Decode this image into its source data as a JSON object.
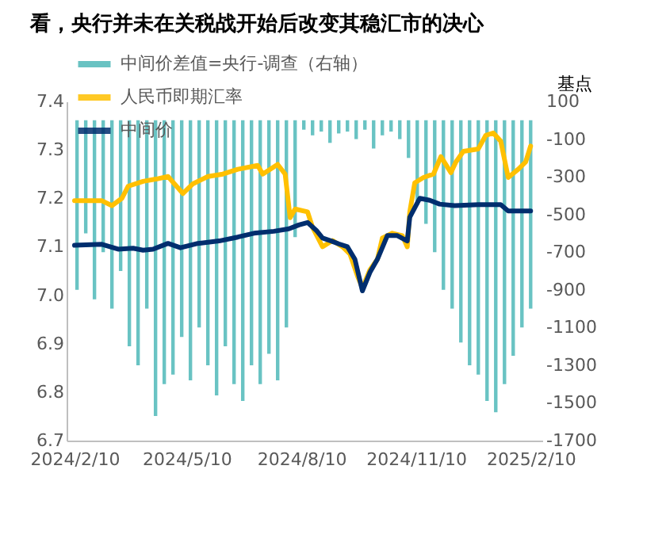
{
  "chart_data": {
    "type": "line",
    "title": "看，央行并未在关税战开始后改变其稳汇市的决心",
    "y2label": "基点",
    "legend": "top left",
    "grid": false,
    "xlim": [
      "2024-02-10",
      "2025-02-13"
    ],
    "xticks": [
      {
        "value": "2024-02-10",
        "label": "2024/2/10"
      },
      {
        "value": "2024-05-10",
        "label": "2024/5/10"
      },
      {
        "value": "2024-08-10",
        "label": "2024/8/10"
      },
      {
        "value": "2024-11-10",
        "label": "2024/11/10"
      },
      {
        "value": "2025-02-10",
        "label": "2025/2/10"
      }
    ],
    "ylim": [
      6.7,
      7.4
    ],
    "yticks": [
      {
        "value": 6.7,
        "label": "6.7"
      },
      {
        "value": 6.8,
        "label": "6.8"
      },
      {
        "value": 6.9,
        "label": "6.9"
      },
      {
        "value": 7,
        "label": "7.0"
      },
      {
        "value": 7.1,
        "label": "7.1"
      },
      {
        "value": 7.2,
        "label": "7.2"
      },
      {
        "value": 7.3,
        "label": "7.3"
      },
      {
        "value": 7.4,
        "label": "7.4"
      }
    ],
    "y2lim": [
      -1700,
      100
    ],
    "y2ticks": [
      100,
      -100,
      -300,
      -500,
      -700,
      -900,
      -1100,
      -1300,
      -1500,
      -1700
    ],
    "series": [
      {
        "name": "中间价差值=央行-调查（右轴）",
        "type": "bar",
        "axis": "y2",
        "color": "#4fb8b8",
        "x": [
          "2024-02-12",
          "2024-02-19",
          "2024-02-26",
          "2024-03-04",
          "2024-03-11",
          "2024-03-18",
          "2024-03-25",
          "2024-04-01",
          "2024-04-08",
          "2024-04-15",
          "2024-04-22",
          "2024-04-29",
          "2024-05-06",
          "2024-05-13",
          "2024-05-20",
          "2024-05-27",
          "2024-06-03",
          "2024-06-10",
          "2024-06-17",
          "2024-06-24",
          "2024-07-01",
          "2024-07-08",
          "2024-07-15",
          "2024-07-22",
          "2024-07-29",
          "2024-08-05",
          "2024-08-12",
          "2024-08-19",
          "2024-08-26",
          "2024-09-02",
          "2024-09-09",
          "2024-09-16",
          "2024-09-23",
          "2024-09-30",
          "2024-10-07",
          "2024-10-14",
          "2024-10-21",
          "2024-10-28",
          "2024-11-04",
          "2024-11-11",
          "2024-11-18",
          "2024-11-25",
          "2024-12-02",
          "2024-12-09",
          "2024-12-16",
          "2024-12-23",
          "2024-12-30",
          "2025-01-06",
          "2025-01-13",
          "2025-01-20",
          "2025-01-27",
          "2025-02-03",
          "2025-02-10"
        ],
        "values": [
          -900,
          -600,
          -950,
          -700,
          -1000,
          -800,
          -1200,
          -1300,
          -1000,
          -1570,
          -1400,
          -1350,
          -1150,
          -1380,
          -1100,
          -1300,
          -1460,
          -1200,
          -1400,
          -1490,
          -1300,
          -1400,
          -1240,
          -1380,
          -1100,
          -620,
          -50,
          -80,
          -60,
          -120,
          -70,
          -60,
          -100,
          -50,
          -150,
          -80,
          -60,
          -100,
          -200,
          -450,
          -550,
          -700,
          -900,
          -1000,
          -1180,
          -1300,
          -1350,
          -1490,
          -1550,
          -1400,
          -1250,
          -1100,
          -1000
        ]
      },
      {
        "name": "人民币即期汇率",
        "color": "#ffc000",
        "x": [
          "2024-02-10",
          "2024-03-03",
          "2024-03-11",
          "2024-03-19",
          "2024-03-24",
          "2024-04-05",
          "2024-04-16",
          "2024-04-25",
          "2024-05-07",
          "2024-05-15",
          "2024-05-27",
          "2024-06-08",
          "2024-06-20",
          "2024-07-06",
          "2024-07-10",
          "2024-07-22",
          "2024-07-28",
          "2024-08-01",
          "2024-08-05",
          "2024-08-15",
          "2024-08-19",
          "2024-08-27",
          "2024-09-04",
          "2024-09-12",
          "2024-09-18",
          "2024-09-24",
          "2024-09-28",
          "2024-10-04",
          "2024-10-10",
          "2024-10-14",
          "2024-10-22",
          "2024-10-30",
          "2024-11-03",
          "2024-11-05",
          "2024-11-09",
          "2024-11-16",
          "2024-11-24",
          "2024-11-30",
          "2024-12-08",
          "2024-12-12",
          "2024-12-18",
          "2024-12-30",
          "2025-01-05",
          "2025-01-11",
          "2025-01-17",
          "2025-01-23",
          "2025-01-31",
          "2025-02-06",
          "2025-02-10"
        ],
        "values": [
          7.195,
          7.195,
          7.185,
          7.2,
          7.225,
          7.235,
          7.24,
          7.245,
          7.21,
          7.23,
          7.245,
          7.25,
          7.26,
          7.268,
          7.25,
          7.27,
          7.25,
          7.16,
          7.178,
          7.172,
          7.14,
          7.1,
          7.113,
          7.1,
          7.085,
          7.04,
          7.015,
          7.052,
          7.074,
          7.118,
          7.128,
          7.123,
          7.1,
          7.172,
          7.232,
          7.243,
          7.25,
          7.286,
          7.253,
          7.275,
          7.297,
          7.302,
          7.33,
          7.335,
          7.318,
          7.243,
          7.26,
          7.275,
          7.308
        ]
      },
      {
        "name": "中间价",
        "color": "#002e6e",
        "x": [
          "2024-02-10",
          "2024-03-03",
          "2024-03-16",
          "2024-03-28",
          "2024-04-05",
          "2024-04-13",
          "2024-04-25",
          "2024-05-05",
          "2024-05-19",
          "2024-06-05",
          "2024-06-20",
          "2024-07-03",
          "2024-07-19",
          "2024-07-31",
          "2024-08-08",
          "2024-08-15",
          "2024-08-22",
          "2024-08-27",
          "2024-09-03",
          "2024-09-09",
          "2024-09-16",
          "2024-09-22",
          "2024-09-28",
          "2024-10-04",
          "2024-10-10",
          "2024-10-18",
          "2024-10-26",
          "2024-11-03",
          "2024-11-05",
          "2024-11-13",
          "2024-11-21",
          "2024-11-29",
          "2024-12-11",
          "2024-12-30",
          "2025-01-17",
          "2025-01-23",
          "2025-02-10"
        ],
        "values": [
          7.103,
          7.105,
          7.095,
          7.097,
          7.093,
          7.095,
          7.107,
          7.098,
          7.107,
          7.112,
          7.12,
          7.128,
          7.132,
          7.137,
          7.145,
          7.15,
          7.134,
          7.118,
          7.112,
          7.106,
          7.1,
          7.074,
          7.009,
          7.047,
          7.074,
          7.123,
          7.123,
          7.112,
          7.161,
          7.2,
          7.196,
          7.188,
          7.185,
          7.187,
          7.187,
          7.174,
          7.174
        ]
      }
    ]
  }
}
